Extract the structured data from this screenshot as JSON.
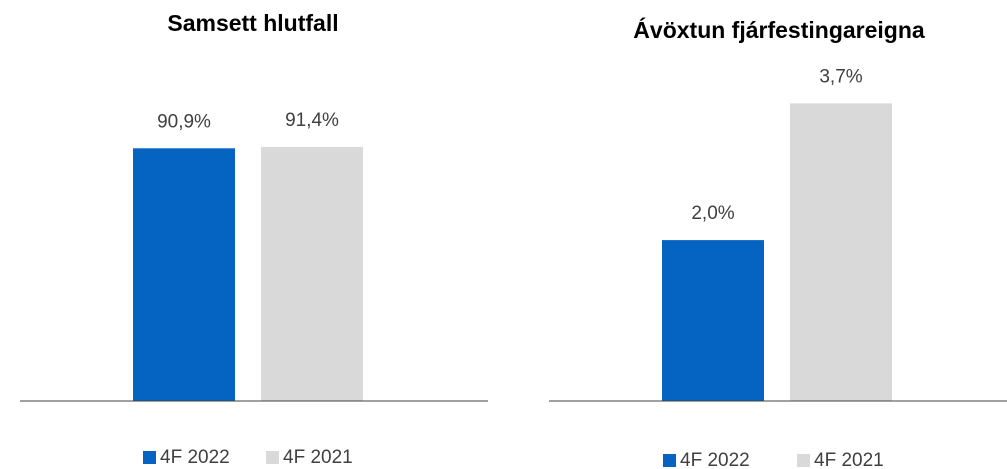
{
  "chart_data": [
    {
      "type": "bar",
      "title": "Samsett hlutfall",
      "categories": [
        null
      ],
      "ylim": [
        0,
        100
      ],
      "series": [
        {
          "name": "4F 2022",
          "color": "#0563c1",
          "values": [
            90.9
          ],
          "value_labels": [
            "90,9%"
          ]
        },
        {
          "name": "4F 2021",
          "color": "#d9d9d9",
          "values": [
            91.4
          ],
          "value_labels": [
            "91,4%"
          ]
        }
      ]
    },
    {
      "type": "bar",
      "title": "Ávöxtun fjárfestingareigna",
      "categories": [
        null
      ],
      "ylim": [
        0,
        4.5
      ],
      "series": [
        {
          "name": "4F 2022",
          "color": "#0563c1",
          "values": [
            2.0
          ],
          "value_labels": [
            "2,0%"
          ]
        },
        {
          "name": "4F 2021",
          "color": "#d9d9d9",
          "values": [
            3.7
          ],
          "value_labels": [
            "3,7%"
          ]
        }
      ]
    }
  ]
}
